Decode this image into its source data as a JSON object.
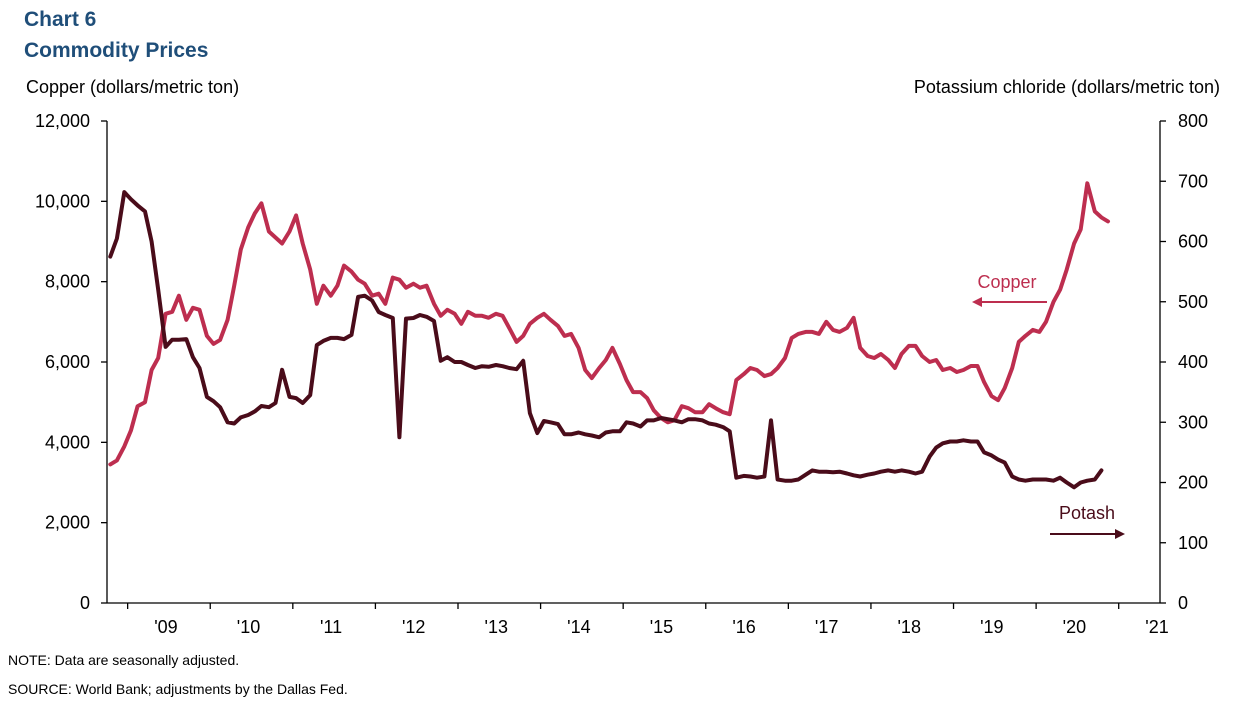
{
  "header": {
    "title": "Chart 6",
    "subtitle": "Commodity  Prices"
  },
  "footer": {
    "note": "NOTE:  Data are seasonally  adjusted.",
    "source": "SOURCE:  World Bank; adjustments  by the Dallas  Fed."
  },
  "colors": {
    "copper": "#bd2e4f",
    "potash": "#4a0c1a",
    "title": "#1f4e79"
  },
  "chart_data": {
    "type": "line",
    "left_axis": {
      "label": "Copper (dollars/metric ton)",
      "ylim": [
        0,
        12000
      ],
      "ticks": [
        "0",
        "2,000",
        "4,000",
        "6,000",
        "8,000",
        "10,000",
        "12,000"
      ]
    },
    "right_axis": {
      "label": "Potassium chloride  (dollars/metric ton)",
      "ylim": [
        0,
        800
      ],
      "ticks": [
        "0",
        "100",
        "200",
        "300",
        "400",
        "500",
        "600",
        "700",
        "800"
      ]
    },
    "xlim": [
      2008.75,
      2021.5
    ],
    "x_ticks": [
      "'09",
      "'10",
      "'11",
      "'12",
      "'13",
      "'14",
      "'15",
      "'16",
      "'17",
      "'18",
      "'19",
      "'20",
      "'21"
    ],
    "grid": false,
    "annotations": [
      {
        "text": "Copper",
        "series": "Copper",
        "axis": "left"
      },
      {
        "text": "Potash",
        "series": "Potash",
        "axis": "right"
      }
    ],
    "series": [
      {
        "name": "Copper",
        "axis": "left",
        "color": "#bd2e4f",
        "points": [
          [
            2008.79,
            3450
          ],
          [
            2008.87,
            3550
          ],
          [
            2008.96,
            3900
          ],
          [
            2009.04,
            4300
          ],
          [
            2009.12,
            4900
          ],
          [
            2009.21,
            5000
          ],
          [
            2009.29,
            5800
          ],
          [
            2009.37,
            6100
          ],
          [
            2009.46,
            7200
          ],
          [
            2009.54,
            7250
          ],
          [
            2009.62,
            7650
          ],
          [
            2009.71,
            7050
          ],
          [
            2009.79,
            7350
          ],
          [
            2009.87,
            7300
          ],
          [
            2009.96,
            6650
          ],
          [
            2010.04,
            6450
          ],
          [
            2010.12,
            6550
          ],
          [
            2010.21,
            7050
          ],
          [
            2010.29,
            7900
          ],
          [
            2010.37,
            8800
          ],
          [
            2010.46,
            9350
          ],
          [
            2010.54,
            9700
          ],
          [
            2010.62,
            9950
          ],
          [
            2010.71,
            9250
          ],
          [
            2010.79,
            9100
          ],
          [
            2010.87,
            8950
          ],
          [
            2010.96,
            9250
          ],
          [
            2011.04,
            9650
          ],
          [
            2011.12,
            8950
          ],
          [
            2011.21,
            8300
          ],
          [
            2011.29,
            7450
          ],
          [
            2011.37,
            7900
          ],
          [
            2011.46,
            7650
          ],
          [
            2011.54,
            7900
          ],
          [
            2011.62,
            8400
          ],
          [
            2011.71,
            8250
          ],
          [
            2011.79,
            8050
          ],
          [
            2011.87,
            7950
          ],
          [
            2011.96,
            7650
          ],
          [
            2012.04,
            7700
          ],
          [
            2012.12,
            7450
          ],
          [
            2012.21,
            8100
          ],
          [
            2012.29,
            8050
          ],
          [
            2012.37,
            7850
          ],
          [
            2012.46,
            7950
          ],
          [
            2012.54,
            7850
          ],
          [
            2012.62,
            7900
          ],
          [
            2012.71,
            7450
          ],
          [
            2012.79,
            7150
          ],
          [
            2012.87,
            7300
          ],
          [
            2012.96,
            7200
          ],
          [
            2013.04,
            6950
          ],
          [
            2013.12,
            7250
          ],
          [
            2013.21,
            7150
          ],
          [
            2013.29,
            7150
          ],
          [
            2013.37,
            7100
          ],
          [
            2013.46,
            7200
          ],
          [
            2013.54,
            7150
          ],
          [
            2013.62,
            6850
          ],
          [
            2013.71,
            6500
          ],
          [
            2013.79,
            6650
          ],
          [
            2013.87,
            6950
          ],
          [
            2013.96,
            7100
          ],
          [
            2014.04,
            7200
          ],
          [
            2014.12,
            7050
          ],
          [
            2014.21,
            6900
          ],
          [
            2014.29,
            6650
          ],
          [
            2014.37,
            6700
          ],
          [
            2014.46,
            6350
          ],
          [
            2014.54,
            5800
          ],
          [
            2014.62,
            5600
          ],
          [
            2014.71,
            5850
          ],
          [
            2014.79,
            6050
          ],
          [
            2014.87,
            6350
          ],
          [
            2014.96,
            5950
          ],
          [
            2015.04,
            5550
          ],
          [
            2015.12,
            5250
          ],
          [
            2015.21,
            5250
          ],
          [
            2015.29,
            5100
          ],
          [
            2015.37,
            4800
          ],
          [
            2015.46,
            4600
          ],
          [
            2015.54,
            4500
          ],
          [
            2015.62,
            4550
          ],
          [
            2015.71,
            4900
          ],
          [
            2015.79,
            4850
          ],
          [
            2015.87,
            4750
          ],
          [
            2015.96,
            4750
          ],
          [
            2016.04,
            4950
          ],
          [
            2016.12,
            4850
          ],
          [
            2016.21,
            4750
          ],
          [
            2016.29,
            4700
          ],
          [
            2016.37,
            5550
          ],
          [
            2016.46,
            5700
          ],
          [
            2016.54,
            5850
          ],
          [
            2016.62,
            5800
          ],
          [
            2016.71,
            5650
          ],
          [
            2016.79,
            5700
          ],
          [
            2016.87,
            5850
          ],
          [
            2016.96,
            6100
          ],
          [
            2017.04,
            6600
          ],
          [
            2017.12,
            6700
          ],
          [
            2017.21,
            6750
          ],
          [
            2017.29,
            6750
          ],
          [
            2017.37,
            6700
          ],
          [
            2017.46,
            7000
          ],
          [
            2017.54,
            6800
          ],
          [
            2017.62,
            6750
          ],
          [
            2017.71,
            6850
          ],
          [
            2017.79,
            7100
          ],
          [
            2017.87,
            6350
          ],
          [
            2017.96,
            6150
          ],
          [
            2018.04,
            6100
          ],
          [
            2018.12,
            6200
          ],
          [
            2018.21,
            6050
          ],
          [
            2018.29,
            5850
          ],
          [
            2018.37,
            6200
          ],
          [
            2018.46,
            6400
          ],
          [
            2018.54,
            6400
          ],
          [
            2018.62,
            6150
          ],
          [
            2018.71,
            6000
          ],
          [
            2018.79,
            6050
          ],
          [
            2018.87,
            5800
          ],
          [
            2018.96,
            5850
          ],
          [
            2019.04,
            5750
          ],
          [
            2019.12,
            5800
          ],
          [
            2019.21,
            5900
          ],
          [
            2019.29,
            5900
          ],
          [
            2019.37,
            5500
          ],
          [
            2019.46,
            5150
          ],
          [
            2019.54,
            5050
          ],
          [
            2019.62,
            5350
          ],
          [
            2019.71,
            5850
          ],
          [
            2019.79,
            6500
          ],
          [
            2019.87,
            6650
          ],
          [
            2019.96,
            6800
          ],
          [
            2020.04,
            6750
          ],
          [
            2020.12,
            7000
          ],
          [
            2020.21,
            7500
          ],
          [
            2020.29,
            7800
          ],
          [
            2020.37,
            8300
          ],
          [
            2020.46,
            8950
          ],
          [
            2020.54,
            9300
          ],
          [
            2020.62,
            10450
          ],
          [
            2020.71,
            9750
          ],
          [
            2020.79,
            9600
          ],
          [
            2020.87,
            9500
          ]
        ]
      },
      {
        "name": "Potash",
        "axis": "right",
        "color": "#4a0c1a",
        "points": [
          [
            2008.79,
            575
          ],
          [
            2008.87,
            605
          ],
          [
            2008.96,
            682
          ],
          [
            2009.04,
            670
          ],
          [
            2009.12,
            660
          ],
          [
            2009.21,
            650
          ],
          [
            2009.29,
            600
          ],
          [
            2009.37,
            520
          ],
          [
            2009.46,
            425
          ],
          [
            2009.54,
            437
          ],
          [
            2009.62,
            437
          ],
          [
            2009.71,
            438
          ],
          [
            2009.79,
            408
          ],
          [
            2009.87,
            390
          ],
          [
            2009.96,
            342
          ],
          [
            2010.04,
            335
          ],
          [
            2010.12,
            325
          ],
          [
            2010.21,
            300
          ],
          [
            2010.29,
            298
          ],
          [
            2010.37,
            308
          ],
          [
            2010.46,
            312
          ],
          [
            2010.54,
            318
          ],
          [
            2010.62,
            327
          ],
          [
            2010.71,
            325
          ],
          [
            2010.79,
            332
          ],
          [
            2010.87,
            387
          ],
          [
            2010.96,
            342
          ],
          [
            2011.04,
            340
          ],
          [
            2011.12,
            332
          ],
          [
            2011.21,
            345
          ],
          [
            2011.29,
            428
          ],
          [
            2011.37,
            435
          ],
          [
            2011.46,
            440
          ],
          [
            2011.54,
            440
          ],
          [
            2011.62,
            438
          ],
          [
            2011.71,
            445
          ],
          [
            2011.79,
            508
          ],
          [
            2011.87,
            510
          ],
          [
            2011.96,
            502
          ],
          [
            2012.04,
            483
          ],
          [
            2012.12,
            478
          ],
          [
            2012.21,
            473
          ],
          [
            2012.29,
            275
          ],
          [
            2012.37,
            472
          ],
          [
            2012.46,
            473
          ],
          [
            2012.54,
            478
          ],
          [
            2012.62,
            475
          ],
          [
            2012.71,
            468
          ],
          [
            2012.79,
            402
          ],
          [
            2012.87,
            408
          ],
          [
            2012.96,
            400
          ],
          [
            2013.04,
            400
          ],
          [
            2013.12,
            395
          ],
          [
            2013.21,
            390
          ],
          [
            2013.29,
            393
          ],
          [
            2013.37,
            392
          ],
          [
            2013.46,
            395
          ],
          [
            2013.54,
            393
          ],
          [
            2013.62,
            390
          ],
          [
            2013.71,
            388
          ],
          [
            2013.79,
            402
          ],
          [
            2013.87,
            315
          ],
          [
            2013.96,
            282
          ],
          [
            2014.04,
            302
          ],
          [
            2014.12,
            300
          ],
          [
            2014.21,
            297
          ],
          [
            2014.29,
            280
          ],
          [
            2014.37,
            280
          ],
          [
            2014.46,
            283
          ],
          [
            2014.54,
            280
          ],
          [
            2014.62,
            278
          ],
          [
            2014.71,
            275
          ],
          [
            2014.79,
            283
          ],
          [
            2014.87,
            285
          ],
          [
            2014.96,
            285
          ],
          [
            2015.04,
            300
          ],
          [
            2015.12,
            298
          ],
          [
            2015.21,
            293
          ],
          [
            2015.29,
            303
          ],
          [
            2015.37,
            303
          ],
          [
            2015.46,
            307
          ],
          [
            2015.54,
            305
          ],
          [
            2015.62,
            303
          ],
          [
            2015.71,
            300
          ],
          [
            2015.79,
            305
          ],
          [
            2015.87,
            305
          ],
          [
            2015.96,
            303
          ],
          [
            2016.04,
            298
          ],
          [
            2016.12,
            296
          ],
          [
            2016.21,
            292
          ],
          [
            2016.29,
            285
          ],
          [
            2016.37,
            208
          ],
          [
            2016.46,
            211
          ],
          [
            2016.54,
            210
          ],
          [
            2016.62,
            208
          ],
          [
            2016.71,
            210
          ],
          [
            2016.79,
            303
          ],
          [
            2016.87,
            205
          ],
          [
            2016.96,
            203
          ],
          [
            2017.04,
            203
          ],
          [
            2017.12,
            205
          ],
          [
            2017.21,
            213
          ],
          [
            2017.29,
            220
          ],
          [
            2017.37,
            218
          ],
          [
            2017.46,
            218
          ],
          [
            2017.54,
            217
          ],
          [
            2017.62,
            218
          ],
          [
            2017.71,
            215
          ],
          [
            2017.79,
            212
          ],
          [
            2017.87,
            210
          ],
          [
            2017.96,
            213
          ],
          [
            2018.04,
            215
          ],
          [
            2018.12,
            218
          ],
          [
            2018.21,
            220
          ],
          [
            2018.29,
            218
          ],
          [
            2018.37,
            220
          ],
          [
            2018.46,
            218
          ],
          [
            2018.54,
            215
          ],
          [
            2018.62,
            218
          ],
          [
            2018.71,
            243
          ],
          [
            2018.79,
            258
          ],
          [
            2018.87,
            265
          ],
          [
            2018.96,
            268
          ],
          [
            2019.04,
            268
          ],
          [
            2019.12,
            270
          ],
          [
            2019.21,
            268
          ],
          [
            2019.29,
            268
          ],
          [
            2019.37,
            250
          ],
          [
            2019.46,
            245
          ],
          [
            2019.54,
            238
          ],
          [
            2019.62,
            233
          ],
          [
            2019.71,
            210
          ],
          [
            2019.79,
            205
          ],
          [
            2019.87,
            203
          ],
          [
            2019.96,
            205
          ],
          [
            2020.04,
            205
          ],
          [
            2020.12,
            205
          ],
          [
            2020.21,
            203
          ],
          [
            2020.29,
            208
          ],
          [
            2020.37,
            200
          ],
          [
            2020.46,
            192
          ],
          [
            2020.54,
            200
          ],
          [
            2020.62,
            203
          ],
          [
            2020.71,
            205
          ],
          [
            2020.79,
            220
          ]
        ]
      }
    ]
  }
}
